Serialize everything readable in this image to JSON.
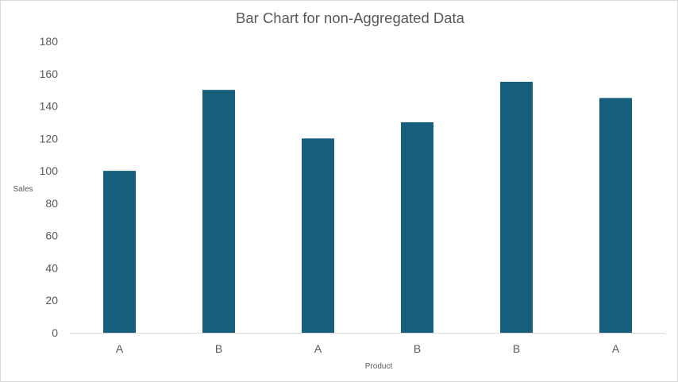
{
  "chart_data": {
    "type": "bar",
    "title": "Bar Chart for non-Aggregated Data",
    "xlabel": "Product",
    "ylabel": "Sales",
    "categories": [
      "A",
      "B",
      "A",
      "B",
      "B",
      "A"
    ],
    "values": [
      100,
      150,
      120,
      130,
      155,
      145
    ],
    "ylim": [
      0,
      180
    ],
    "yticks": [
      "0",
      "20",
      "40",
      "60",
      "80",
      "100",
      "120",
      "140",
      "160",
      "180"
    ],
    "grid": false,
    "legend": "none",
    "bar_color": "#17607d",
    "axis_color": "#d9d9d9",
    "text_color": "#595959"
  }
}
